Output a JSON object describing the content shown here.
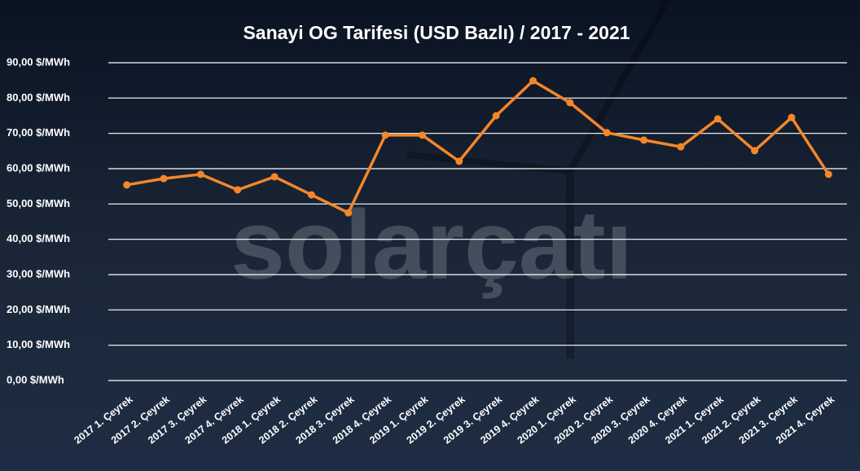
{
  "chart_data": {
    "type": "line",
    "title": "Sanayi OG Tarifesi (USD Bazlı) / 2017 - 2021",
    "watermark": "solarçatı",
    "categories": [
      "2017 1. Çeyrek",
      "2017 2. Çeyrek",
      "2017 3. Çeyrek",
      "2017 4. Çeyrek",
      "2018 1. Çeyrek",
      "2018 2. Çeyrek",
      "2018 3. Çeyrek",
      "2018 4. Çeyrek",
      "2019 1. Çeyrek",
      "2019 2. Çeyrek",
      "2019 3. Çeyrek",
      "2019 4. Çeyrek",
      "2020 1. Çeyrek",
      "2020 2. Çeyrek",
      "2020 3. Çeyrek",
      "2020 4. Çeyrek",
      "2021 1. Çeyrek",
      "2021 2. Çeyrek",
      "2021 3. Çeyrek",
      "2021 4. Çeyrek"
    ],
    "values": [
      55.4,
      57.2,
      58.4,
      54.0,
      57.7,
      52.6,
      47.5,
      69.5,
      69.5,
      62.1,
      75.0,
      84.9,
      78.7,
      70.2,
      68.1,
      66.2,
      74.1,
      65.1,
      74.5,
      58.4
    ],
    "color": "#f4862a",
    "ylim": [
      0,
      90
    ],
    "yticks": [
      {
        "value": 0,
        "label": "0,00 $/MWh"
      },
      {
        "value": 10,
        "label": "10,00 $/MWh"
      },
      {
        "value": 20,
        "label": "20,00 $/MWh"
      },
      {
        "value": 30,
        "label": "30,00 $/MWh"
      },
      {
        "value": 40,
        "label": "40,00 $/MWh"
      },
      {
        "value": 50,
        "label": "50,00 $/MWh"
      },
      {
        "value": 60,
        "label": "60,00 $/MWh"
      },
      {
        "value": 70,
        "label": "70,00 $/MWh"
      },
      {
        "value": 80,
        "label": "80,00 $/MWh"
      },
      {
        "value": 90,
        "label": "90,00 $/MWh"
      }
    ],
    "grid": true
  }
}
